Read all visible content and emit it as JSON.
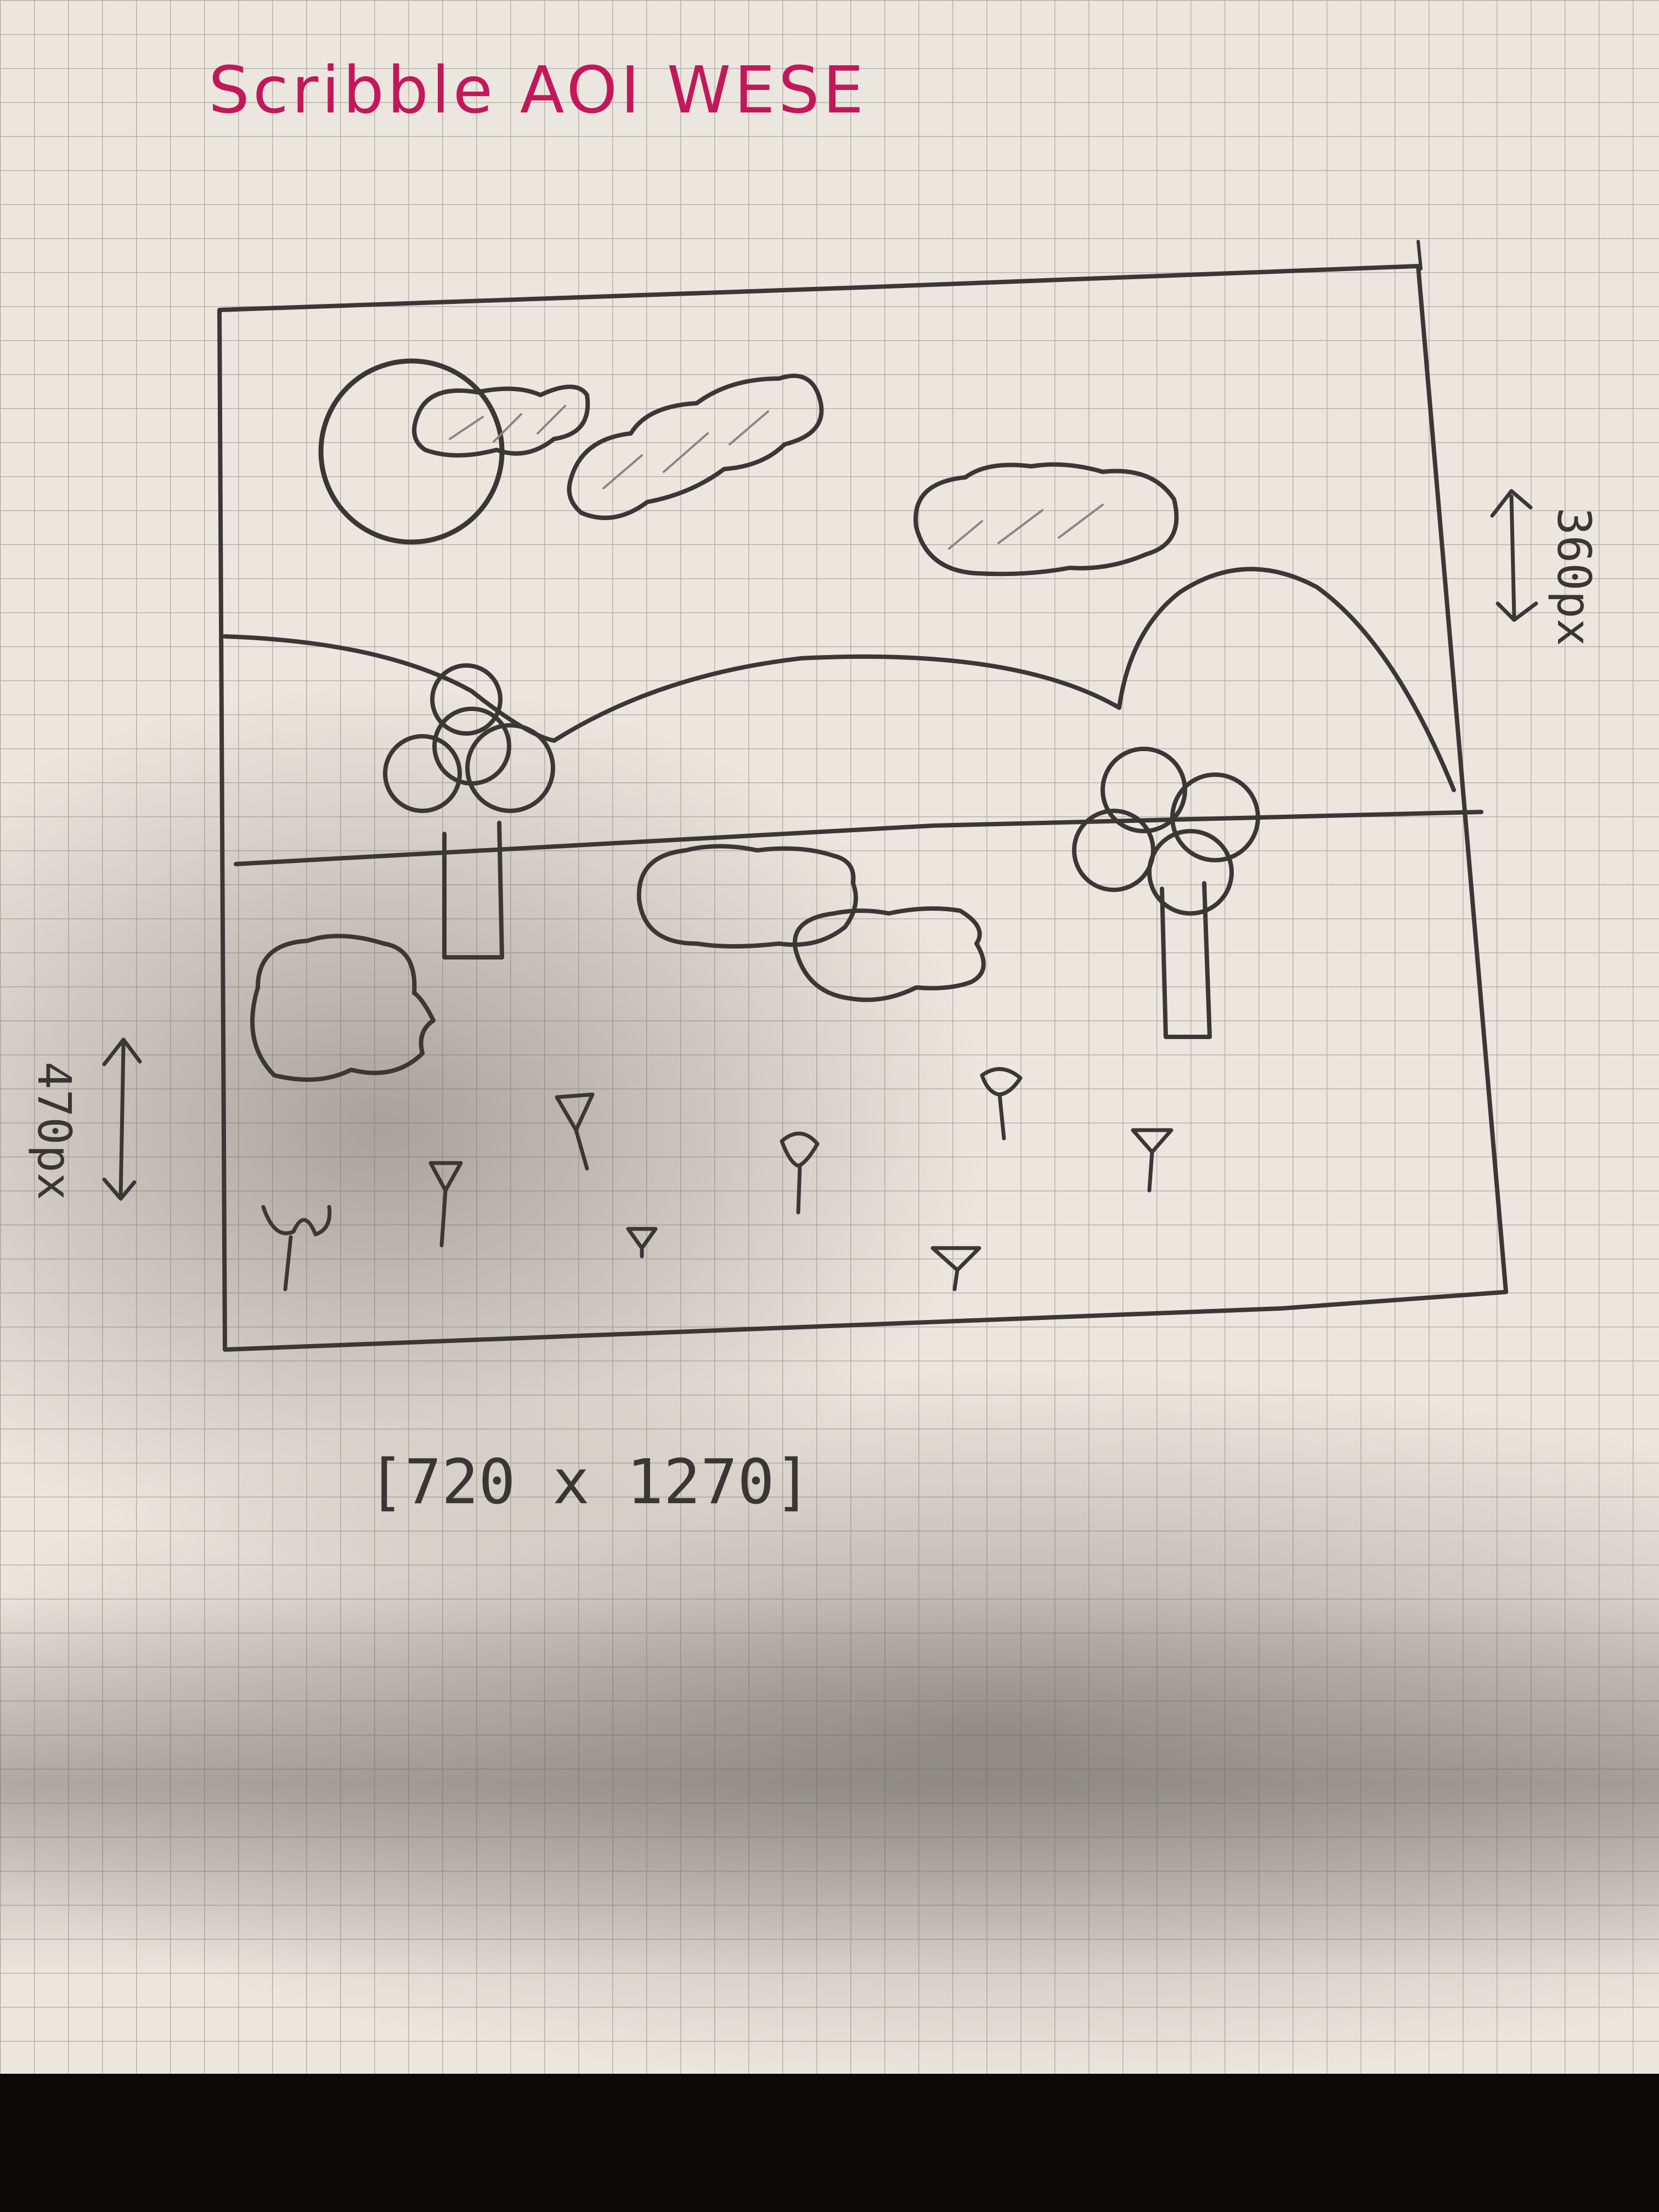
{
  "sheet": {
    "title": "Scribble AOI WESE",
    "size_label": "[720 x 1270]",
    "right_dimension_label": "360px",
    "left_dimension_label": "470px"
  },
  "colors": {
    "paper": "#ebe7df",
    "grid": "#b7b2a9",
    "pencil": "#3a3734",
    "title_ink": "#c2185b",
    "shadow": "#8f8a83",
    "table": "#0b0907"
  },
  "sketch": {
    "elements": [
      "sun",
      "clouds",
      "hills",
      "horizon-line",
      "trees",
      "bushes",
      "flowers"
    ]
  }
}
